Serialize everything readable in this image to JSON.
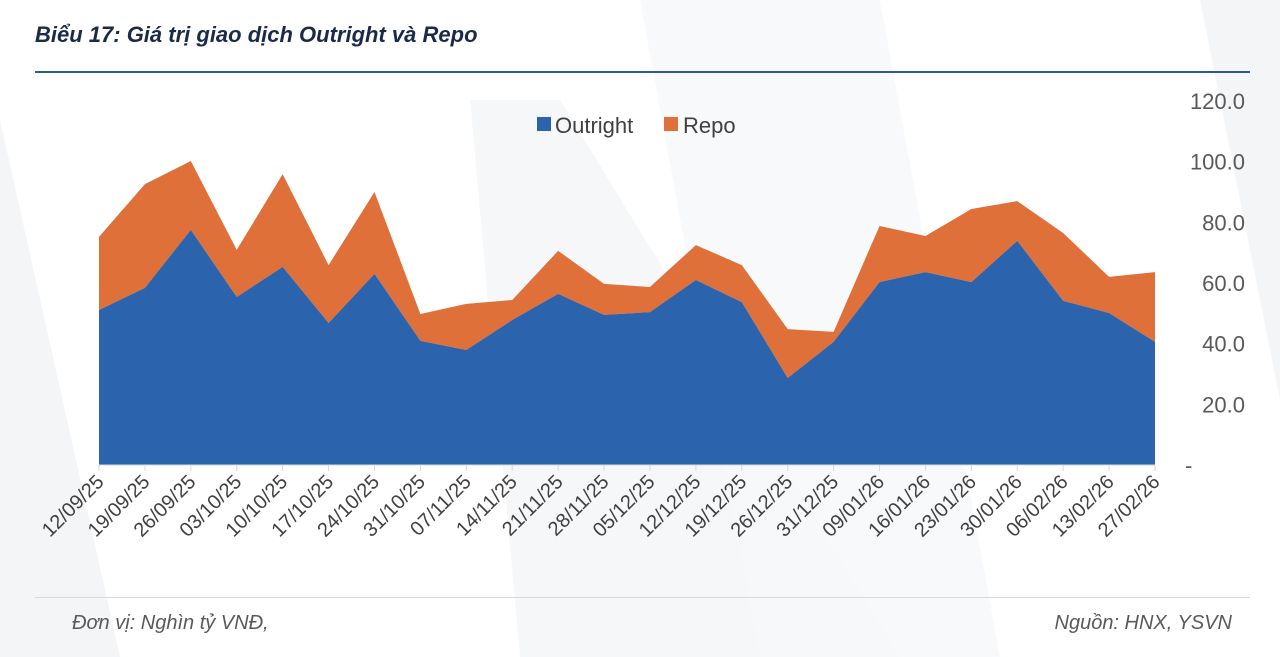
{
  "title": "Biểu 17: Giá trị giao dịch Outright và Repo",
  "footer": {
    "unit": "Đơn vị: Nghìn tỷ VNĐ,",
    "source": "Nguồn: HNX, YSVN"
  },
  "chart_data": {
    "type": "area",
    "stacked": true,
    "title": "Biểu 17: Giá trị giao dịch Outright và Repo",
    "categories": [
      "12/09/25",
      "19/09/25",
      "26/09/25",
      "03/10/25",
      "10/10/25",
      "17/10/25",
      "24/10/25",
      "31/10/25",
      "07/11/25",
      "14/11/25",
      "21/11/25",
      "28/11/25",
      "05/12/25",
      "12/12/25",
      "19/12/25",
      "26/12/25",
      "31/12/25",
      "09/01/26",
      "16/01/26",
      "23/01/26",
      "30/01/26",
      "06/02/26",
      "13/02/26",
      "27/02/26"
    ],
    "series": [
      {
        "name": "Outright",
        "color": "#2b64ac",
        "values": [
          51.1,
          58.4,
          77.5,
          55.4,
          65.3,
          46.8,
          63.0,
          40.9,
          37.9,
          47.8,
          56.4,
          49.5,
          50.4,
          61.0,
          53.7,
          28.7,
          40.6,
          60.3,
          63.6,
          60.3,
          73.9,
          54.1,
          50.1,
          40.6
        ]
      },
      {
        "name": "Repo",
        "color": "#e0703a",
        "values": [
          24.1,
          34.2,
          22.7,
          15.5,
          30.6,
          19.1,
          27.0,
          8.9,
          15.2,
          6.6,
          14.2,
          10.2,
          8.3,
          11.5,
          12.2,
          16.1,
          3.3,
          18.5,
          11.9,
          24.1,
          13.1,
          22.4,
          11.9,
          23.0
        ]
      }
    ],
    "ylim": [
      0,
      120
    ],
    "yticks": [
      "-",
      "20.0",
      "40.0",
      "60.0",
      "80.0",
      "100.0",
      "120.0"
    ],
    "y_axis_position": "right",
    "grid": false,
    "legend_position": "top-center",
    "xlabel": "",
    "ylabel": ""
  }
}
